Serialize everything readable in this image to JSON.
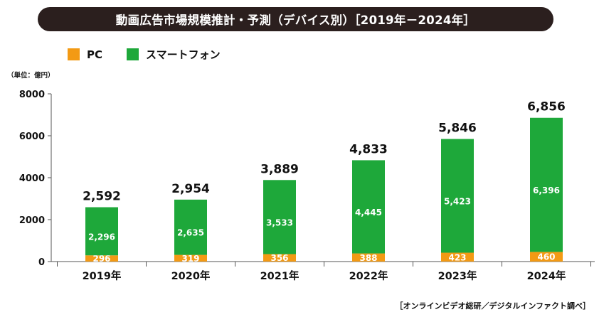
{
  "title": "動画広告市場規模推計・予測（デバイス別）［2019年－2024年］",
  "unit": "（単位：億円）",
  "source": "［オンラインビデオ総研／デジタルインファクト調べ］",
  "colors": {
    "pc": "#f39a14",
    "smartphone": "#1ea83a"
  },
  "chart_data": {
    "type": "bar",
    "stacked": true,
    "categories": [
      "2019年",
      "2020年",
      "2021年",
      "2022年",
      "2023年",
      "2024年"
    ],
    "series": [
      {
        "name": "PC",
        "values": [
          296,
          319,
          356,
          388,
          423,
          460
        ]
      },
      {
        "name": "スマートフォン",
        "values": [
          2296,
          2635,
          3533,
          4445,
          5423,
          6396
        ]
      }
    ],
    "series_labels": [
      [
        "296",
        "319",
        "356",
        "388",
        "423",
        "460"
      ],
      [
        "2,296",
        "2,635",
        "3,533",
        "4,445",
        "5,423",
        "6,396"
      ]
    ],
    "totals": [
      "2,592",
      "2,954",
      "3,889",
      "4,833",
      "5,846",
      "6,856"
    ],
    "yticks": [
      0,
      2000,
      4000,
      6000,
      8000
    ],
    "ylim": [
      0,
      8000
    ],
    "legend_position": "top-left"
  }
}
